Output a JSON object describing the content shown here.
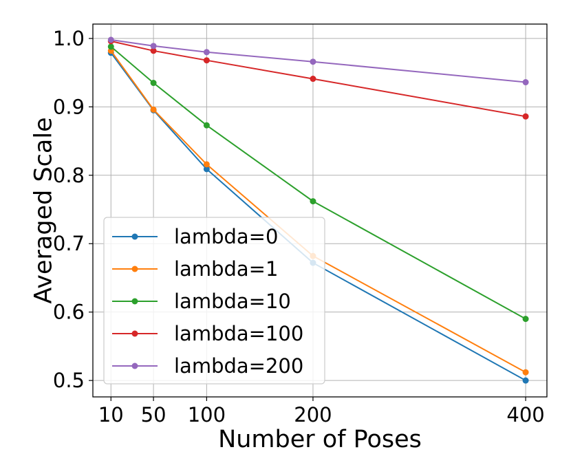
{
  "chart_data": {
    "type": "line",
    "title": "",
    "xlabel": "Number of Poses",
    "ylabel": "Averaged Scale",
    "x": [
      10,
      50,
      100,
      200,
      400
    ],
    "xticks": [
      10,
      50,
      100,
      200,
      400
    ],
    "xtick_labels": [
      "10",
      "50",
      "100",
      "200",
      "400"
    ],
    "yticks": [
      0.5,
      0.6,
      0.7,
      0.8,
      0.9,
      1.0
    ],
    "ytick_labels": [
      "0.5",
      "0.6",
      "0.7",
      "0.8",
      "0.9",
      "1.0"
    ],
    "xlim": [
      -7,
      420
    ],
    "ylim": [
      0.476,
      1.021
    ],
    "grid": true,
    "legend_position": "lower-left",
    "series": [
      {
        "name": "lambda=0",
        "color": "#1f77b4",
        "values": [
          0.979,
          0.895,
          0.809,
          0.672,
          0.5
        ]
      },
      {
        "name": "lambda=1",
        "color": "#ff7f0e",
        "values": [
          0.982,
          0.896,
          0.816,
          0.682,
          0.512
        ]
      },
      {
        "name": "lambda=10",
        "color": "#2ca02c",
        "values": [
          0.988,
          0.935,
          0.873,
          0.762,
          0.59
        ]
      },
      {
        "name": "lambda=100",
        "color": "#d62728",
        "values": [
          0.996,
          0.982,
          0.968,
          0.941,
          0.886
        ]
      },
      {
        "name": "lambda=200",
        "color": "#9467bd",
        "values": [
          0.998,
          0.989,
          0.98,
          0.966,
          0.936
        ]
      }
    ]
  }
}
